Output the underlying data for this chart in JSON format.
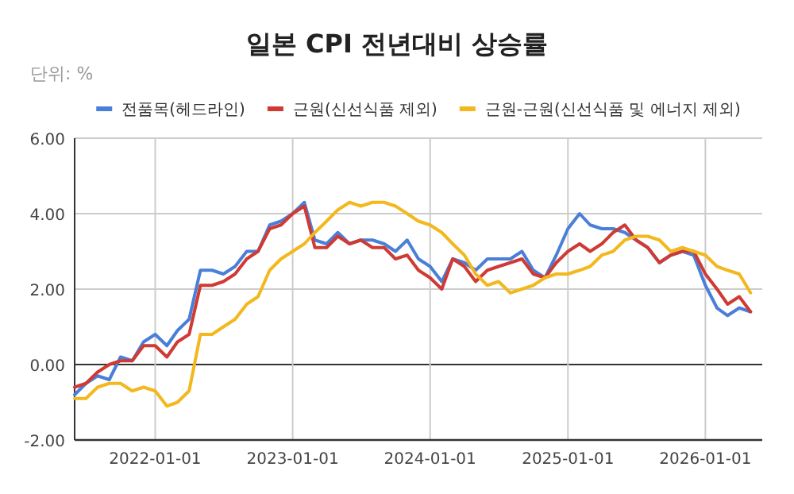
{
  "chart_data": {
    "type": "line",
    "title": "일본 CPI 전년대비 상승률",
    "annotations": [
      "단위: %"
    ],
    "x": [
      "2021-06",
      "2021-07",
      "2021-08",
      "2021-09",
      "2021-10",
      "2021-11",
      "2021-12",
      "2022-01",
      "2022-02",
      "2022-03",
      "2022-04",
      "2022-05",
      "2022-06",
      "2022-07",
      "2022-08",
      "2022-09",
      "2022-10",
      "2022-11",
      "2022-12",
      "2023-01",
      "2023-02",
      "2023-03",
      "2023-04",
      "2023-05",
      "2023-06",
      "2023-07",
      "2023-08",
      "2023-09",
      "2023-10",
      "2023-11",
      "2023-12",
      "2024-01",
      "2024-02",
      "2024-03",
      "2024-04",
      "2024-05",
      "2024-06",
      "2024-07",
      "2024-08",
      "2024-09",
      "2024-10",
      "2024-11",
      "2024-12",
      "2025-01",
      "2025-02",
      "2025-03",
      "2025-04",
      "2025-05",
      "2025-06",
      "2025-07",
      "2025-08",
      "2025-09",
      "2025-10",
      "2025-11",
      "2025-12",
      "2026-01",
      "2026-02",
      "2026-03",
      "2026-04",
      "2026-05"
    ],
    "series": [
      {
        "name": "전품목(헤드라인)",
        "color": "#4a7fd8",
        "values": [
          -0.8,
          -0.5,
          -0.3,
          -0.4,
          0.2,
          0.1,
          0.6,
          0.8,
          0.5,
          0.9,
          1.2,
          2.5,
          2.5,
          2.4,
          2.6,
          3.0,
          3.0,
          3.7,
          3.8,
          4.0,
          4.3,
          3.3,
          3.2,
          3.5,
          3.2,
          3.3,
          3.3,
          3.2,
          3.0,
          3.3,
          2.8,
          2.6,
          2.2,
          2.8,
          2.7,
          2.5,
          2.8,
          2.8,
          2.8,
          3.0,
          2.5,
          2.3,
          2.9,
          3.6,
          4.0,
          3.7,
          3.6,
          3.6,
          3.5,
          3.3,
          3.1,
          2.7,
          2.9,
          3.0,
          2.9,
          2.1,
          1.5,
          1.3,
          1.5,
          1.4
        ]
      },
      {
        "name": "근원(신선식품 제외)",
        "color": "#d03a35",
        "values": [
          -0.6,
          -0.5,
          -0.2,
          0.0,
          0.1,
          0.1,
          0.5,
          0.5,
          0.2,
          0.6,
          0.8,
          2.1,
          2.1,
          2.2,
          2.4,
          2.8,
          3.0,
          3.6,
          3.7,
          4.0,
          4.2,
          3.1,
          3.1,
          3.4,
          3.2,
          3.3,
          3.1,
          3.1,
          2.8,
          2.9,
          2.5,
          2.3,
          2.0,
          2.8,
          2.6,
          2.2,
          2.5,
          2.6,
          2.7,
          2.8,
          2.4,
          2.3,
          2.7,
          3.0,
          3.2,
          3.0,
          3.2,
          3.5,
          3.7,
          3.3,
          3.1,
          2.7,
          2.9,
          3.0,
          3.0,
          2.4,
          2.0,
          1.6,
          1.8,
          1.4
        ]
      },
      {
        "name": "근원-근원(신선식품 및 에너지 제외)",
        "color": "#f2b81d",
        "values": [
          -0.9,
          -0.9,
          -0.6,
          -0.5,
          -0.5,
          -0.7,
          -0.6,
          -0.7,
          -1.1,
          -1.0,
          -0.7,
          0.8,
          0.8,
          1.0,
          1.2,
          1.6,
          1.8,
          2.5,
          2.8,
          3.0,
          3.2,
          3.5,
          3.8,
          4.1,
          4.3,
          4.2,
          4.3,
          4.3,
          4.2,
          4.0,
          3.8,
          3.7,
          3.5,
          3.2,
          2.9,
          2.4,
          2.1,
          2.2,
          1.9,
          2.0,
          2.1,
          2.3,
          2.4,
          2.4,
          2.5,
          2.6,
          2.9,
          3.0,
          3.3,
          3.4,
          3.4,
          3.3,
          3.0,
          3.1,
          3.0,
          2.9,
          2.6,
          2.5,
          2.4,
          1.9
        ]
      }
    ],
    "xlim": [
      "2021-06-01",
      "2026-06-01"
    ],
    "xticks": [
      {
        "value": "2022-01-01",
        "label": "2022-01-01"
      },
      {
        "value": "2023-01-01",
        "label": "2023-01-01"
      },
      {
        "value": "2024-01-01",
        "label": "2024-01-01"
      },
      {
        "value": "2025-01-01",
        "label": "2025-01-01"
      },
      {
        "value": "2026-01-01",
        "label": "2026-01-01"
      }
    ],
    "ylim": [
      -2,
      6
    ],
    "yticks": [
      {
        "value": -2,
        "label": "-2.00"
      },
      {
        "value": 0,
        "label": "0.00"
      },
      {
        "value": 2,
        "label": "2.00"
      },
      {
        "value": 4,
        "label": "4.00"
      },
      {
        "value": 6,
        "label": "6.00"
      }
    ],
    "grid": true,
    "legend": "top",
    "marker": "none",
    "line_style": "solid"
  }
}
